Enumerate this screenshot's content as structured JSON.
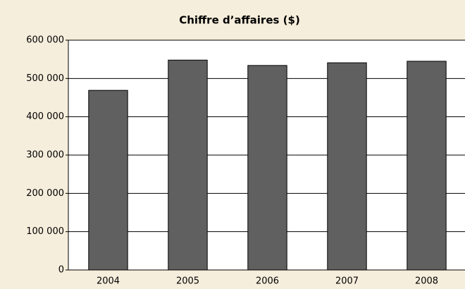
{
  "chart_data": {
    "type": "bar",
    "title": "Chiffre d’affaires ($)",
    "categories": [
      "2004",
      "2005",
      "2006",
      "2007",
      "2008"
    ],
    "values": [
      469000,
      548000,
      534000,
      541000,
      545000
    ],
    "color": "#606060",
    "ylim": [
      0,
      600000
    ],
    "yticks": [
      0,
      {
        "value": 100000,
        "label": "100 000"
      },
      {
        "value": 200000,
        "label": "200 000"
      },
      {
        "value": 300000,
        "label": "300 000"
      },
      {
        "value": 400000,
        "label": "400 000"
      },
      {
        "value": 500000,
        "label": "500 000"
      },
      {
        "value": 600000,
        "label": "600 000"
      }
    ],
    "grid": true
  }
}
